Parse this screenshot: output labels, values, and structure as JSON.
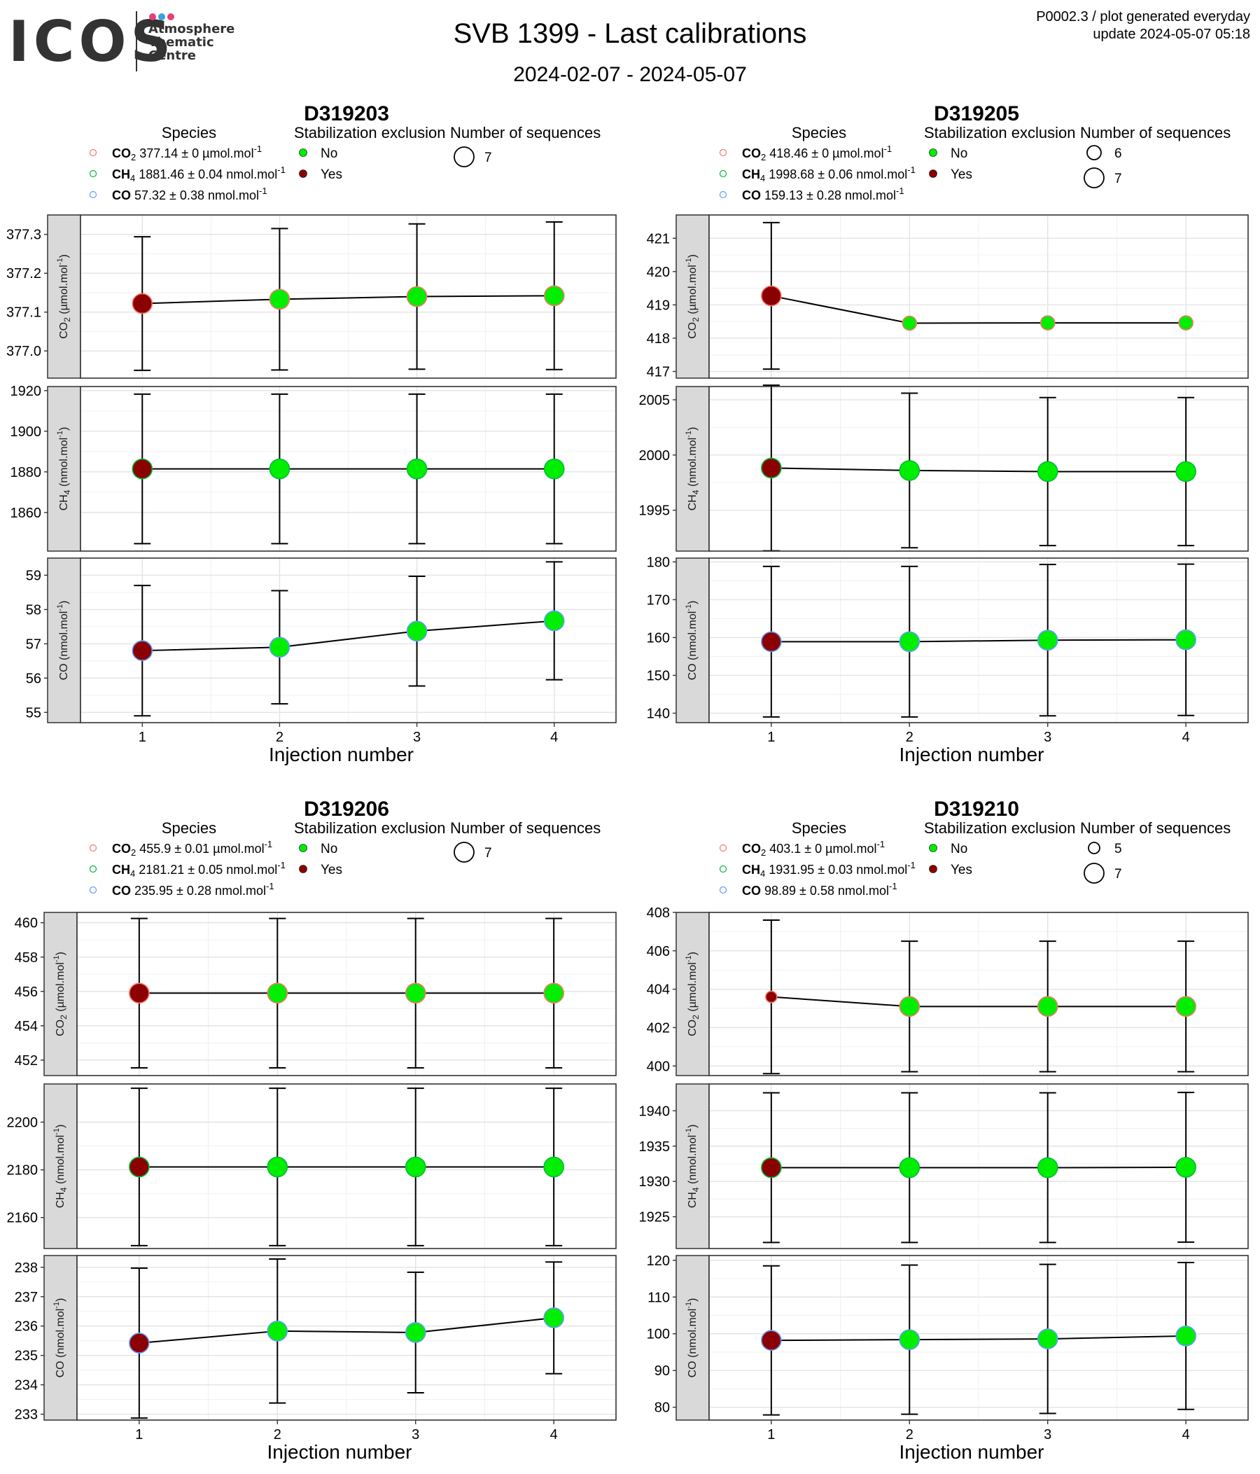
{
  "header": {
    "logo_text": "ICOS",
    "logo_subtitle": [
      "Atmosphere",
      "Thematic",
      "Centre"
    ],
    "title": "SVB 1399 - Last calibrations",
    "subtitle": "2024-02-07 - 2024-05-07",
    "meta_line1": "P0002.3 / plot generated everyday",
    "meta_line2": "update  2024-05-07 05:18"
  },
  "colors": {
    "no": "#00ee00",
    "yes": "#8b0000",
    "co2_ring": "#f8766d",
    "ch4_ring": "#00ba38",
    "co_ring": "#619cff",
    "strip": "#d9d9d9"
  },
  "legend_titles": {
    "species": "Species",
    "stabilization": "Stabilization exclusion",
    "sequences": "Number of sequences",
    "no": "No",
    "yes": "Yes"
  },
  "chart_data": [
    {
      "type": "scatter",
      "title": "D319203",
      "xlabel": "Injection number",
      "x": [
        1,
        2,
        3,
        4
      ],
      "species_legend": [
        {
          "sp": "CO",
          "sub": "2",
          "text": " 377.14 ± 0 µmol.mol",
          "sup": "-1"
        },
        {
          "sp": "CH",
          "sub": "4",
          "text": " 1881.46 ± 0.04 nmol.mol",
          "sup": "-1"
        },
        {
          "sp": "CO",
          "sub": "",
          "text": " 57.32 ± 0.38 nmol.mol",
          "sup": "-1"
        }
      ],
      "sequences_legend": [
        "7"
      ],
      "facets": [
        {
          "ylabel": "CO2 (µmol.mol-1)",
          "ylim": [
            376.93,
            377.35
          ],
          "ticks": [
            377.0,
            377.1,
            377.2,
            377.3
          ],
          "tick_labels": [
            "377.0",
            "377.1",
            "377.2",
            "377.3"
          ],
          "y": [
            377.122,
            377.133,
            377.14,
            377.142
          ],
          "err": [
            0.172,
            0.182,
            0.187,
            0.19
          ],
          "exclusion": [
            "Yes",
            "No",
            "No",
            "No"
          ],
          "sequences": [
            7,
            7,
            7,
            7
          ]
        },
        {
          "ylabel": "CH4 (nmol.mol-1)",
          "ylim": [
            1841,
            1922
          ],
          "ticks": [
            1860,
            1880,
            1900,
            1920
          ],
          "tick_labels": [
            "1860",
            "1880",
            "1900",
            "1920"
          ],
          "y": [
            1881.46,
            1881.46,
            1881.46,
            1881.46
          ],
          "err": [
            36.8,
            36.8,
            36.8,
            36.8
          ],
          "exclusion": [
            "Yes",
            "No",
            "No",
            "No"
          ],
          "sequences": [
            7,
            7,
            7,
            7
          ]
        },
        {
          "ylabel": "CO (nmol.mol-1)",
          "ylim": [
            54.7,
            59.5
          ],
          "ticks": [
            55,
            56,
            57,
            58,
            59
          ],
          "tick_labels": [
            "55",
            "56",
            "57",
            "58",
            "59"
          ],
          "y": [
            56.8,
            56.9,
            57.37,
            57.67
          ],
          "err": [
            1.9,
            1.65,
            1.6,
            1.72
          ],
          "exclusion": [
            "Yes",
            "No",
            "No",
            "No"
          ],
          "sequences": [
            7,
            7,
            7,
            7
          ]
        }
      ]
    },
    {
      "type": "scatter",
      "title": "D319205",
      "xlabel": "Injection number",
      "x": [
        1,
        2,
        3,
        4
      ],
      "species_legend": [
        {
          "sp": "CO",
          "sub": "2",
          "text": " 418.46 ± 0 µmol.mol",
          "sup": "-1"
        },
        {
          "sp": "CH",
          "sub": "4",
          "text": " 1998.68 ± 0.06 nmol.mol",
          "sup": "-1"
        },
        {
          "sp": "CO",
          "sub": "",
          "text": " 159.13 ± 0.28 nmol.mol",
          "sup": "-1"
        }
      ],
      "sequences_legend": [
        "6",
        "7"
      ],
      "facets": [
        {
          "ylabel": "CO2 (µmol.mol-1)",
          "ylim": [
            416.8,
            421.7
          ],
          "ticks": [
            417,
            418,
            419,
            420,
            421
          ],
          "tick_labels": [
            "417",
            "418",
            "419",
            "420",
            "421"
          ],
          "y": [
            419.27,
            418.45,
            418.46,
            418.46
          ],
          "err": [
            2.2,
            0,
            0,
            0
          ],
          "exclusion": [
            "Yes",
            "No",
            "No",
            "No"
          ],
          "sequences": [
            7,
            6,
            6,
            6
          ]
        },
        {
          "ylabel": "CH4 (nmol.mol-1)",
          "ylim": [
            1991.3,
            2006.2
          ],
          "ticks": [
            1995,
            2000,
            2005
          ],
          "tick_labels": [
            "1995",
            "2000",
            "2005"
          ],
          "y": [
            1998.82,
            1998.6,
            1998.5,
            1998.5
          ],
          "err": [
            7.5,
            7.0,
            6.7,
            6.7
          ],
          "exclusion": [
            "Yes",
            "No",
            "No",
            "No"
          ],
          "sequences": [
            7,
            7,
            7,
            7
          ]
        },
        {
          "ylabel": "CO (nmol.mol-1)",
          "ylim": [
            137.5,
            181
          ],
          "ticks": [
            140,
            150,
            160,
            170,
            180
          ],
          "tick_labels": [
            "140",
            "150",
            "160",
            "170",
            "180"
          ],
          "y": [
            158.9,
            158.9,
            159.3,
            159.4
          ],
          "err": [
            19.9,
            19.9,
            20.0,
            20.0
          ],
          "exclusion": [
            "Yes",
            "No",
            "No",
            "No"
          ],
          "sequences": [
            7,
            7,
            7,
            7
          ]
        }
      ]
    },
    {
      "type": "scatter",
      "title": "D319206",
      "xlabel": "Injection number",
      "x": [
        1,
        2,
        3,
        4
      ],
      "species_legend": [
        {
          "sp": "CO",
          "sub": "2",
          "text": " 455.9 ± 0.01 µmol.mol",
          "sup": "-1"
        },
        {
          "sp": "CH",
          "sub": "4",
          "text": " 2181.21 ± 0.05 nmol.mol",
          "sup": "-1"
        },
        {
          "sp": "CO",
          "sub": "",
          "text": " 235.95 ± 0.28 nmol.mol",
          "sup": "-1"
        }
      ],
      "sequences_legend": [
        "7"
      ],
      "facets": [
        {
          "ylabel": "CO2 (µmol.mol-1)",
          "ylim": [
            451.1,
            460.6
          ],
          "ticks": [
            452,
            454,
            456,
            458,
            460
          ],
          "tick_labels": [
            "452",
            "454",
            "456",
            "458",
            "460"
          ],
          "y": [
            455.9,
            455.9,
            455.9,
            455.9
          ],
          "err": [
            4.35,
            4.35,
            4.35,
            4.35
          ],
          "exclusion": [
            "Yes",
            "No",
            "No",
            "No"
          ],
          "sequences": [
            7,
            7,
            7,
            7
          ]
        },
        {
          "ylabel": "CH4 (nmol.mol-1)",
          "ylim": [
            2147,
            2216
          ],
          "ticks": [
            2160,
            2180,
            2200
          ],
          "tick_labels": [
            "2160",
            "2180",
            "2200"
          ],
          "y": [
            2181.2,
            2181.2,
            2181.2,
            2181.2
          ],
          "err": [
            33,
            33,
            33,
            33
          ],
          "exclusion": [
            "Yes",
            "No",
            "No",
            "No"
          ],
          "sequences": [
            7,
            7,
            7,
            7
          ]
        },
        {
          "ylabel": "CO (nmol.mol-1)",
          "ylim": [
            232.8,
            238.4
          ],
          "ticks": [
            233,
            234,
            235,
            236,
            237,
            238
          ],
          "tick_labels": [
            "233",
            "234",
            "235",
            "236",
            "237",
            "238"
          ],
          "y": [
            235.42,
            235.83,
            235.78,
            236.28
          ],
          "err": [
            2.55,
            2.45,
            2.05,
            1.9
          ],
          "exclusion": [
            "Yes",
            "No",
            "No",
            "No"
          ],
          "sequences": [
            7,
            7,
            7,
            7
          ]
        }
      ]
    },
    {
      "type": "scatter",
      "title": "D319210",
      "xlabel": "Injection number",
      "x": [
        1,
        2,
        3,
        4
      ],
      "species_legend": [
        {
          "sp": "CO",
          "sub": "2",
          "text": " 403.1 ± 0 µmol.mol",
          "sup": "-1"
        },
        {
          "sp": "CH",
          "sub": "4",
          "text": " 1931.95 ± 0.03 nmol.mol",
          "sup": "-1"
        },
        {
          "sp": "CO",
          "sub": "",
          "text": " 98.89 ± 0.58 nmol.mol",
          "sup": "-1"
        }
      ],
      "sequences_legend": [
        "5",
        "7"
      ],
      "facets": [
        {
          "ylabel": "CO2 (µmol.mol-1)",
          "ylim": [
            399.5,
            408
          ],
          "ticks": [
            400,
            402,
            404,
            406,
            408
          ],
          "tick_labels": [
            "400",
            "402",
            "404",
            "406",
            "408"
          ],
          "y": [
            403.6,
            403.1,
            403.1,
            403.1
          ],
          "err": [
            4.0,
            3.4,
            3.4,
            3.4
          ],
          "exclusion": [
            "Yes",
            "No",
            "No",
            "No"
          ],
          "sequences": [
            5,
            7,
            7,
            7
          ]
        },
        {
          "ylabel": "CH4 (nmol.mol-1)",
          "ylim": [
            1920.5,
            1943.8
          ],
          "ticks": [
            1925,
            1930,
            1935,
            1940
          ],
          "tick_labels": [
            "1925",
            "1930",
            "1935",
            "1940"
          ],
          "y": [
            1931.95,
            1931.95,
            1931.95,
            1932.0
          ],
          "err": [
            10.6,
            10.6,
            10.6,
            10.6
          ],
          "exclusion": [
            "Yes",
            "No",
            "No",
            "No"
          ],
          "sequences": [
            7,
            7,
            7,
            7
          ]
        },
        {
          "ylabel": "CO (nmol.mol-1)",
          "ylim": [
            76.5,
            121.3
          ],
          "ticks": [
            80,
            90,
            100,
            110,
            120
          ],
          "tick_labels": [
            "80",
            "90",
            "100",
            "110",
            "120"
          ],
          "y": [
            98.2,
            98.4,
            98.6,
            99.4
          ],
          "err": [
            20.3,
            20.3,
            20.3,
            20.0
          ],
          "exclusion": [
            "Yes",
            "No",
            "No",
            "No"
          ],
          "sequences": [
            7,
            7,
            7,
            7
          ]
        }
      ]
    }
  ]
}
